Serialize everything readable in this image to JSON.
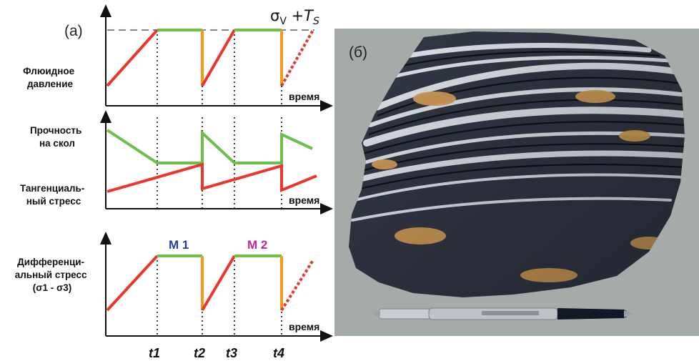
{
  "panel_a": {
    "label": "(a)",
    "sigma_label": "σ",
    "sigma_sub": "V",
    "plus": " +",
    "ts_label": "T",
    "ts_sub": "S",
    "charts": {
      "fluid": {
        "ylabel": [
          "Флюидное",
          "давление"
        ],
        "xlabel": "время"
      },
      "strength": {
        "ylabel_top": [
          "Прочность",
          "на скол"
        ],
        "ylabel_bottom": [
          "Тангенциаль-",
          "ный стресс"
        ],
        "xlabel": "время"
      },
      "differential": {
        "ylabel": [
          "Дифференци-",
          "альный стресс",
          "(σ1 - σ3)"
        ],
        "xlabel": "время"
      }
    },
    "markers": [
      {
        "label": "M 1",
        "color": "#2a3c9a"
      },
      {
        "label": "M 2",
        "color": "#c0278f"
      }
    ],
    "time_ticks": [
      "t1",
      "t2",
      "t3",
      "t4"
    ]
  },
  "panel_b": {
    "label": "(б)"
  },
  "colors": {
    "rise": "#e8372c",
    "plateau": "#6cc04a",
    "drop": "#f39a1e",
    "dashed_level": "#7f7fb5",
    "axis": "#111111"
  }
}
